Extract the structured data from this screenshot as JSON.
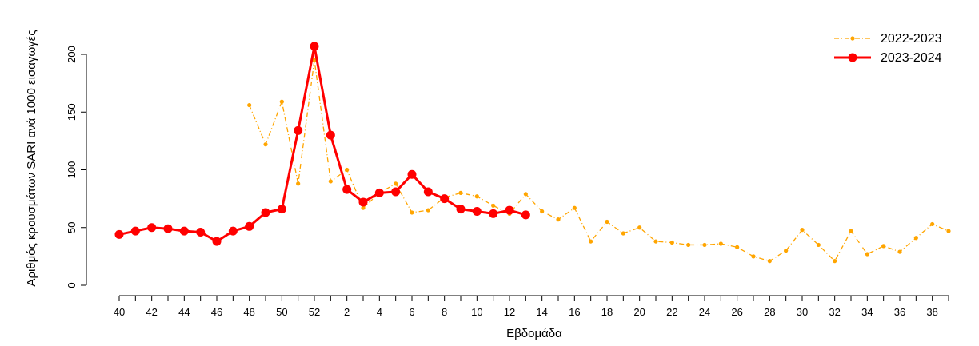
{
  "chart_data": {
    "type": "line",
    "title": "",
    "xlabel": "Εβδομάδα",
    "ylabel": "Αριθμός κρουσμάτων SARI ανά 1000 εισαγωγές",
    "ylim": [
      0,
      215
    ],
    "yticks": [
      0,
      50,
      100,
      150,
      200
    ],
    "categories": [
      "40",
      "41",
      "42",
      "43",
      "44",
      "45",
      "46",
      "47",
      "48",
      "49",
      "50",
      "51",
      "52",
      "1",
      "2",
      "3",
      "4",
      "5",
      "6",
      "7",
      "8",
      "9",
      "10",
      "11",
      "12",
      "13",
      "14",
      "15",
      "16",
      "17",
      "18",
      "19",
      "20",
      "21",
      "22",
      "23",
      "24",
      "25",
      "26",
      "27",
      "28",
      "29",
      "30",
      "31",
      "32",
      "33",
      "34",
      "35",
      "36",
      "37",
      "38",
      "39"
    ],
    "xtick_labels": [
      "40",
      "42",
      "44",
      "46",
      "48",
      "50",
      "52",
      "2",
      "4",
      "6",
      "8",
      "10",
      "12",
      "14",
      "16",
      "18",
      "20",
      "22",
      "24",
      "26",
      "28",
      "30",
      "32",
      "34",
      "36",
      "38"
    ],
    "legend_position": "top-right",
    "series": [
      {
        "name": "2022-2023",
        "color": "#FFA500",
        "style": "dashdot",
        "values": [
          null,
          null,
          null,
          null,
          null,
          null,
          null,
          null,
          156,
          122,
          159,
          88,
          195,
          90,
          100,
          67,
          80,
          88,
          63,
          65,
          76,
          80,
          77,
          69,
          62,
          79,
          64,
          57,
          67,
          38,
          55,
          45,
          50,
          38,
          37,
          35,
          35,
          36,
          33,
          25,
          21,
          30,
          48,
          35,
          21,
          47,
          27,
          34,
          29,
          41,
          53,
          47
        ]
      },
      {
        "name": "2023-2024",
        "color": "#FF0000",
        "style": "solid",
        "values": [
          44,
          47,
          50,
          49,
          47,
          46,
          38,
          47,
          51,
          63,
          66,
          134,
          207,
          130,
          83,
          72,
          80,
          81,
          96,
          81,
          75,
          66,
          64,
          62,
          65,
          61,
          null,
          null,
          null,
          null,
          null,
          null,
          null,
          null,
          null,
          null,
          null,
          null,
          null,
          null,
          null,
          null,
          null,
          null,
          null,
          null,
          null,
          null,
          null,
          null,
          null,
          null
        ]
      }
    ]
  }
}
